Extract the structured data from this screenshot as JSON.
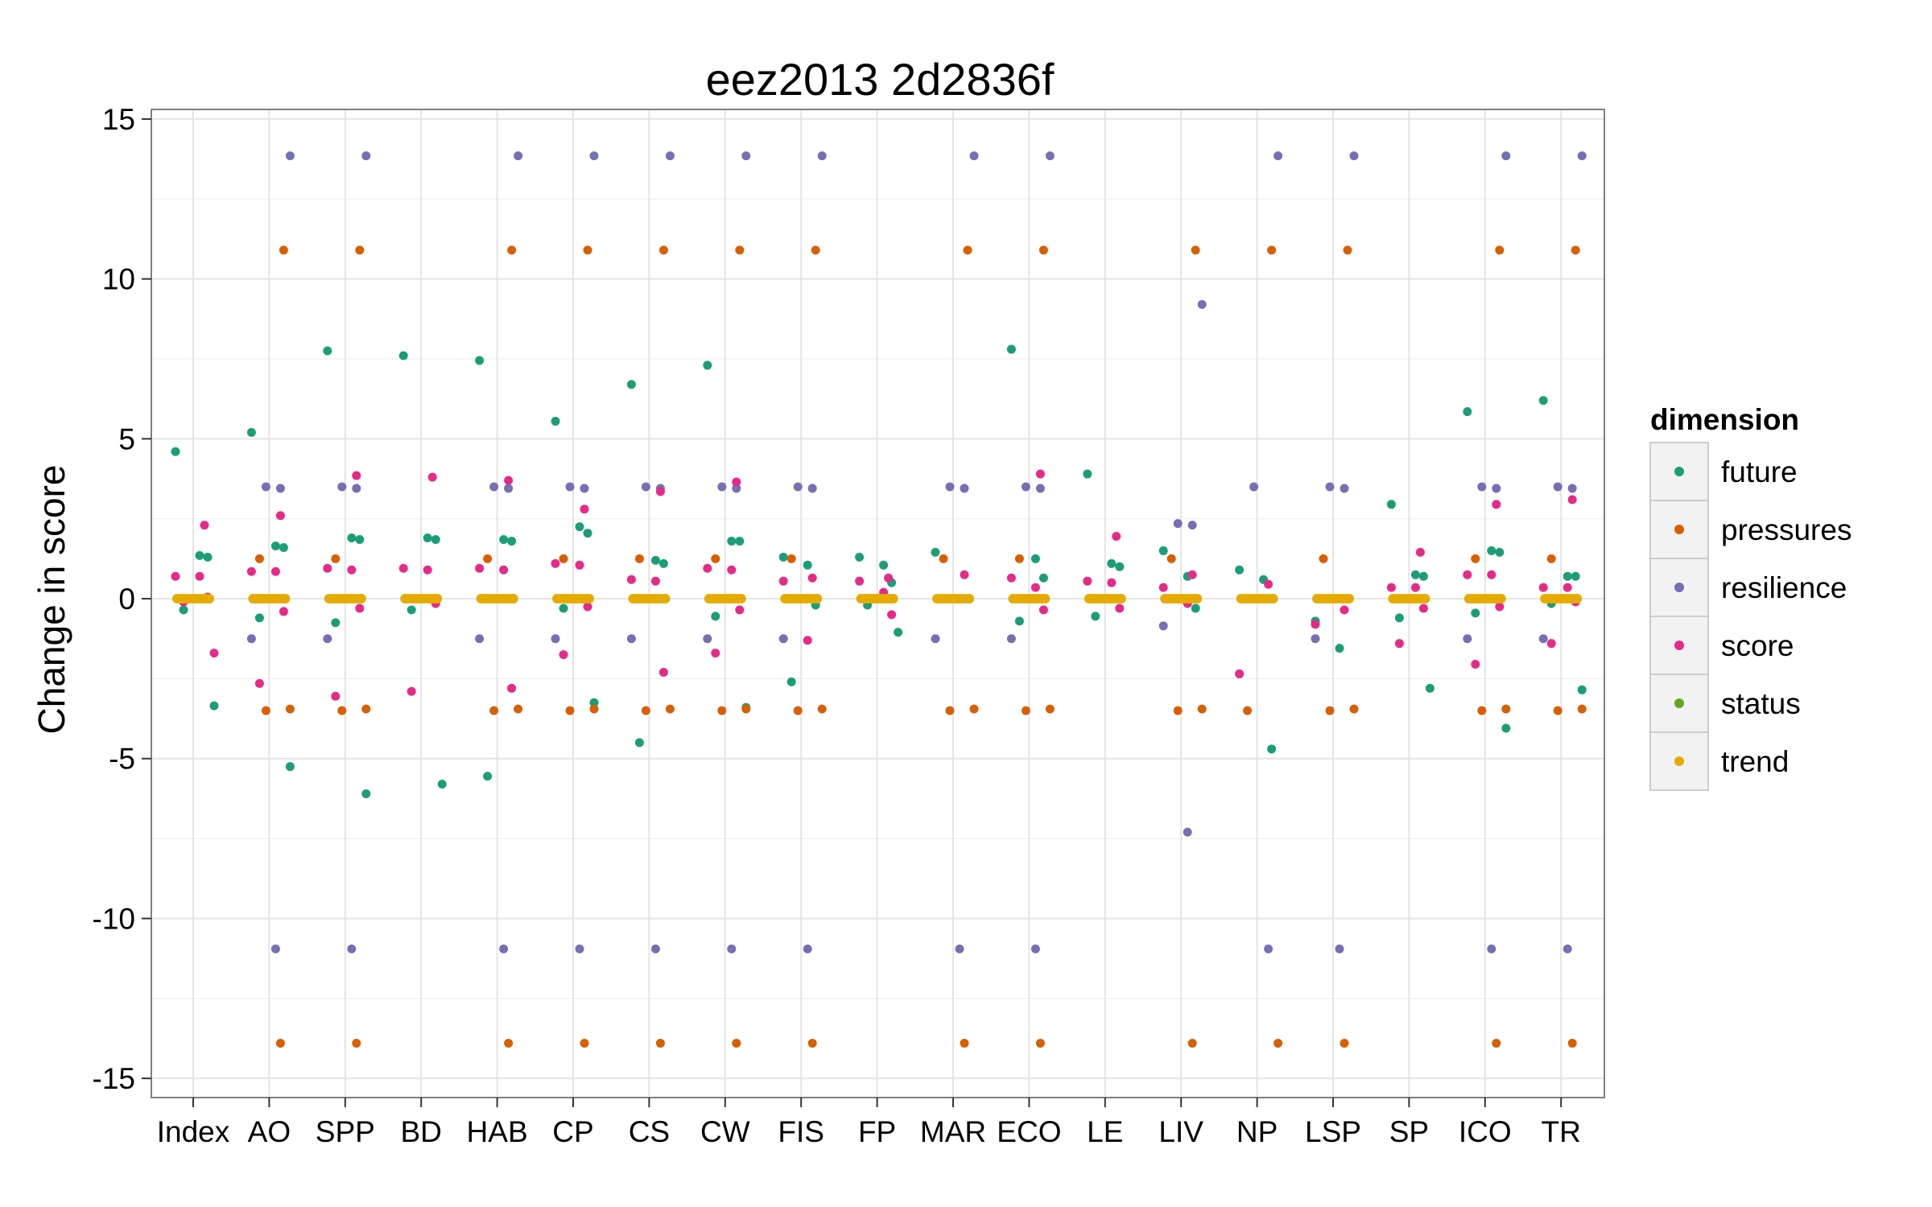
{
  "chart_data": {
    "type": "scatter",
    "title": "eez2013 2d2836f",
    "xlabel": "",
    "ylabel": "Change in score",
    "ylim": [
      -15,
      15
    ],
    "yticks": [
      15,
      10,
      5,
      0,
      -5,
      -10,
      -15
    ],
    "yticklabels": [
      "15",
      "10",
      "5",
      "0",
      "-5",
      "-10",
      "-15"
    ],
    "categories": [
      "Index",
      "AO",
      "SPP",
      "BD",
      "HAB",
      "CP",
      "CS",
      "CW",
      "FIS",
      "FP",
      "MAR",
      "ECO",
      "LE",
      "LIV",
      "NP",
      "LSP",
      "SP",
      "ICO",
      "TR"
    ],
    "grid": true,
    "legend": {
      "title": "dimension",
      "position": "right",
      "entries": [
        "future",
        "pressures",
        "resilience",
        "score",
        "status",
        "trend"
      ]
    },
    "colors": {
      "future": "#1b9e77",
      "pressures": "#d95f02",
      "resilience": "#7570b3",
      "score": "#e7298a",
      "status": "#66a61e",
      "trend": "#e6ab02"
    },
    "series": [
      {
        "name": "future",
        "points": [
          {
            "category": "Index",
            "values": [
              4.6,
              1.35,
              1.3,
              -0.35,
              -3.35
            ]
          },
          {
            "category": "AO",
            "values": [
              5.2,
              1.65,
              1.6,
              -0.6,
              -5.25
            ]
          },
          {
            "category": "SPP",
            "values": [
              7.75,
              1.9,
              1.85,
              -0.75,
              -6.1
            ]
          },
          {
            "category": "BD",
            "values": [
              7.6,
              1.9,
              1.85,
              -0.35,
              -5.8
            ]
          },
          {
            "category": "HAB",
            "values": [
              7.45,
              1.85,
              1.8,
              -5.55
            ]
          },
          {
            "category": "CP",
            "values": [
              5.55,
              2.25,
              2.05,
              -0.3,
              -3.25
            ]
          },
          {
            "category": "CS",
            "values": [
              6.7,
              1.2,
              1.1,
              -4.5
            ]
          },
          {
            "category": "CW",
            "values": [
              7.3,
              1.8,
              1.8,
              -0.55,
              -3.4
            ]
          },
          {
            "category": "FIS",
            "values": [
              1.3,
              1.05,
              -0.2,
              -2.6
            ]
          },
          {
            "category": "FP",
            "values": [
              1.3,
              1.05,
              0.5,
              -0.2,
              -1.05
            ]
          },
          {
            "category": "MAR",
            "values": [
              1.45
            ]
          },
          {
            "category": "ECO",
            "values": [
              7.8,
              1.25,
              0.65,
              -0.7
            ]
          },
          {
            "category": "LE",
            "values": [
              3.9,
              1.1,
              1.0,
              -0.55
            ]
          },
          {
            "category": "LIV",
            "values": [
              1.5,
              0.7,
              -0.3
            ]
          },
          {
            "category": "NP",
            "values": [
              0.9,
              0.6,
              -4.7
            ]
          },
          {
            "category": "LSP",
            "values": [
              -0.7,
              -1.55
            ]
          },
          {
            "category": "SP",
            "values": [
              2.95,
              0.75,
              0.7,
              -0.6,
              -2.8
            ]
          },
          {
            "category": "ICO",
            "values": [
              5.85,
              1.5,
              1.45,
              -0.45,
              -4.05
            ]
          },
          {
            "category": "TR",
            "values": [
              6.2,
              0.7,
              0.7,
              -0.15,
              -2.85
            ]
          }
        ]
      },
      {
        "name": "pressures",
        "points": [
          {
            "category": "AO",
            "values": [
              10.9,
              1.25,
              -3.45,
              -3.5,
              -13.9
            ]
          },
          {
            "category": "SPP",
            "values": [
              10.9,
              1.25,
              -3.45,
              -3.5,
              -13.9
            ]
          },
          {
            "category": "BD",
            "values": []
          },
          {
            "category": "HAB",
            "values": [
              10.9,
              1.25,
              -3.45,
              -3.5,
              -13.9
            ]
          },
          {
            "category": "CP",
            "values": [
              10.9,
              1.25,
              -3.45,
              -3.5,
              -13.9
            ]
          },
          {
            "category": "CS",
            "values": [
              10.9,
              1.25,
              -3.45,
              -3.5,
              -13.9
            ]
          },
          {
            "category": "CW",
            "values": [
              10.9,
              1.25,
              -3.45,
              -3.5,
              -13.9
            ]
          },
          {
            "category": "FIS",
            "values": [
              10.9,
              1.25,
              -3.45,
              -3.5,
              -13.9
            ]
          },
          {
            "category": "MAR",
            "values": [
              10.9,
              1.25,
              -3.45,
              -3.5,
              -13.9
            ]
          },
          {
            "category": "ECO",
            "values": [
              10.9,
              1.25,
              -3.45,
              -3.5,
              -13.9
            ]
          },
          {
            "category": "LIV",
            "values": [
              10.9,
              1.25,
              -3.45,
              -3.5,
              -13.9
            ]
          },
          {
            "category": "NP",
            "values": [
              10.9,
              -3.5,
              -13.9
            ]
          },
          {
            "category": "LSP",
            "values": [
              10.9,
              1.25,
              -3.45,
              -3.5,
              -13.9
            ]
          },
          {
            "category": "ICO",
            "values": [
              10.9,
              1.25,
              -3.45,
              -3.5,
              -13.9
            ]
          },
          {
            "category": "TR",
            "values": [
              10.9,
              1.25,
              -3.45,
              -3.5,
              -13.9
            ]
          }
        ]
      },
      {
        "name": "resilience",
        "points": [
          {
            "category": "AO",
            "values": [
              13.85,
              3.5,
              3.45,
              -1.25,
              -10.95
            ]
          },
          {
            "category": "SPP",
            "values": [
              13.85,
              3.5,
              3.45,
              -1.25,
              -10.95
            ]
          },
          {
            "category": "HAB",
            "values": [
              13.85,
              3.5,
              3.45,
              -1.25,
              -10.95
            ]
          },
          {
            "category": "CP",
            "values": [
              13.85,
              3.5,
              3.45,
              -1.25,
              -10.95
            ]
          },
          {
            "category": "CS",
            "values": [
              13.85,
              3.5,
              3.45,
              -1.25,
              -10.95
            ]
          },
          {
            "category": "CW",
            "values": [
              13.85,
              3.5,
              3.45,
              -1.25,
              -10.95
            ]
          },
          {
            "category": "FIS",
            "values": [
              13.85,
              3.5,
              3.45,
              -1.25,
              -10.95
            ]
          },
          {
            "category": "MAR",
            "values": [
              13.85,
              3.5,
              3.45,
              -1.25,
              -10.95
            ]
          },
          {
            "category": "ECO",
            "values": [
              13.85,
              3.5,
              3.45,
              -1.25,
              -10.95
            ]
          },
          {
            "category": "LIV",
            "values": [
              9.2,
              2.35,
              2.3,
              -0.85,
              -7.3
            ]
          },
          {
            "category": "NP",
            "values": [
              13.85,
              3.5,
              -10.95
            ]
          },
          {
            "category": "LSP",
            "values": [
              13.85,
              3.5,
              3.45,
              -1.25,
              -10.95
            ]
          },
          {
            "category": "ICO",
            "values": [
              13.85,
              3.5,
              3.45,
              -1.25,
              -10.95
            ]
          },
          {
            "category": "TR",
            "values": [
              13.85,
              3.5,
              3.45,
              -1.25,
              -10.95
            ]
          }
        ]
      },
      {
        "name": "score",
        "points": [
          {
            "category": "Index",
            "values": [
              2.3,
              0.7,
              0.7,
              0.05,
              -0.1,
              -1.7
            ]
          },
          {
            "category": "AO",
            "values": [
              2.6,
              0.85,
              0.85,
              -0.4,
              -2.65
            ]
          },
          {
            "category": "SPP",
            "values": [
              3.85,
              0.95,
              0.9,
              -0.3,
              -3.05
            ]
          },
          {
            "category": "BD",
            "values": [
              3.8,
              0.95,
              0.9,
              -0.15,
              -2.9
            ]
          },
          {
            "category": "HAB",
            "values": [
              3.7,
              0.95,
              0.9,
              -2.8
            ]
          },
          {
            "category": "CP",
            "values": [
              2.8,
              1.1,
              1.05,
              -0.25,
              -1.75
            ]
          },
          {
            "category": "CS",
            "values": [
              3.35,
              0.6,
              0.55,
              -2.3
            ]
          },
          {
            "category": "CW",
            "values": [
              3.65,
              0.95,
              0.9,
              -0.35,
              -1.7
            ]
          },
          {
            "category": "FIS",
            "values": [
              0.65,
              0.55,
              -1.3
            ]
          },
          {
            "category": "FP",
            "values": [
              0.65,
              0.55,
              0.2,
              -0.5
            ]
          },
          {
            "category": "MAR",
            "values": [
              0.75
            ]
          },
          {
            "category": "ECO",
            "values": [
              3.9,
              0.65,
              0.35,
              -0.35
            ]
          },
          {
            "category": "LE",
            "values": [
              1.95,
              0.55,
              0.5,
              -0.3
            ]
          },
          {
            "category": "LIV",
            "values": [
              0.75,
              0.35,
              -0.15
            ]
          },
          {
            "category": "NP",
            "values": [
              0.45,
              -2.35
            ]
          },
          {
            "category": "LSP",
            "values": [
              -0.35,
              -0.8
            ]
          },
          {
            "category": "SP",
            "values": [
              1.45,
              0.35,
              0.35,
              -0.3,
              -1.4
            ]
          },
          {
            "category": "ICO",
            "values": [
              2.95,
              0.75,
              0.75,
              -0.25,
              -2.05
            ]
          },
          {
            "category": "TR",
            "values": [
              3.1,
              0.35,
              0.35,
              -0.1,
              -1.4
            ]
          }
        ]
      },
      {
        "name": "status",
        "points": []
      },
      {
        "name": "trend",
        "points": [
          {
            "category": "Index",
            "values": [
              0
            ]
          },
          {
            "category": "AO",
            "values": [
              0
            ]
          },
          {
            "category": "SPP",
            "values": [
              0
            ]
          },
          {
            "category": "BD",
            "values": [
              0
            ]
          },
          {
            "category": "HAB",
            "values": [
              0
            ]
          },
          {
            "category": "CP",
            "values": [
              0
            ]
          },
          {
            "category": "CS",
            "values": [
              0
            ]
          },
          {
            "category": "CW",
            "values": [
              0
            ]
          },
          {
            "category": "FIS",
            "values": [
              0
            ]
          },
          {
            "category": "FP",
            "values": [
              0
            ]
          },
          {
            "category": "MAR",
            "values": [
              0
            ]
          },
          {
            "category": "ECO",
            "values": [
              0
            ]
          },
          {
            "category": "LE",
            "values": [
              0
            ]
          },
          {
            "category": "LIV",
            "values": [
              0
            ]
          },
          {
            "category": "NP",
            "values": [
              0
            ]
          },
          {
            "category": "LSP",
            "values": [
              0
            ]
          },
          {
            "category": "SP",
            "values": [
              0
            ]
          },
          {
            "category": "ICO",
            "values": [
              0
            ]
          },
          {
            "category": "TR",
            "values": [
              0
            ]
          }
        ]
      }
    ]
  }
}
